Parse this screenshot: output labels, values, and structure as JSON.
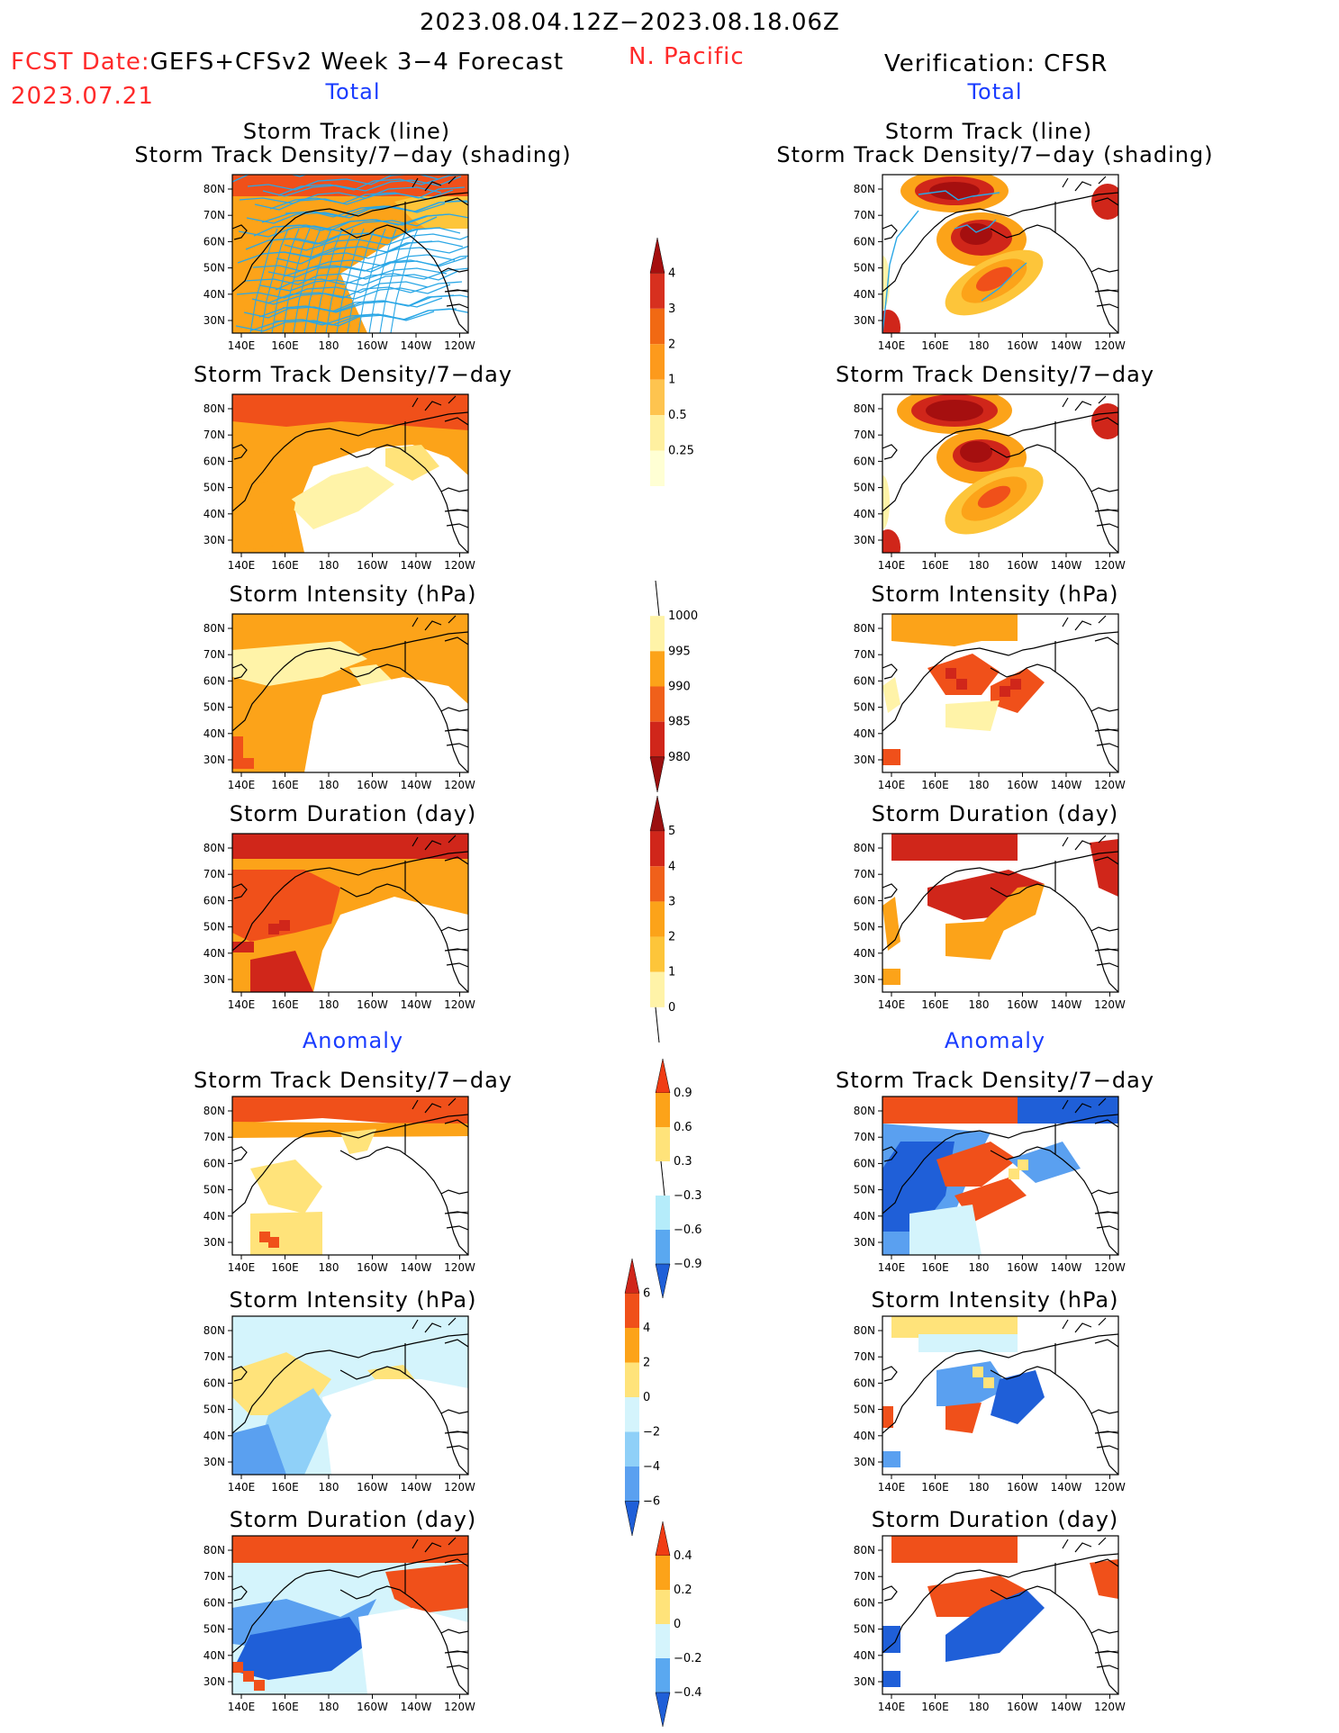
{
  "header": {
    "period": "2023.08.04.12Z−2023.08.18.06Z",
    "fcst_label": "FCST Date:",
    "forecast_name": "GEFS+CFSv2 Week 3−4 Forecast",
    "fcst_date": "2023.07.21",
    "region": "N. Pacific",
    "verification": "Verification: CFSR"
  },
  "sections": {
    "total": "Total",
    "anomaly": "Anomaly"
  },
  "panel_titles": {
    "track_line": "Storm Track (line)",
    "track_density_shading": "Storm Track Density/7−day (shading)",
    "track_density": "Storm Track Density/7−day",
    "intensity": "Storm Intensity (hPa)",
    "duration": "Storm Duration (day)"
  },
  "map_axes": {
    "lon_labels": [
      "140E",
      "160E",
      "180",
      "160W",
      "140W",
      "120W"
    ],
    "lat_labels": [
      "80N",
      "70N",
      "60N",
      "50N",
      "40N",
      "30N"
    ]
  },
  "colorbars": {
    "density": {
      "labels": [
        "4",
        "3",
        "2",
        "1",
        "0.5",
        "0.25"
      ],
      "colors": [
        "#a50f0f",
        "#d7301f",
        "#f16913",
        "#fd9a1c",
        "#fec44f",
        "#fff0a0",
        "#ffffd4"
      ]
    },
    "intensity": {
      "labels": [
        "1000",
        "995",
        "990",
        "985",
        "980"
      ],
      "colors": [
        "#ffffff",
        "#fff3a8",
        "#fca319",
        "#f0601a",
        "#d0261a",
        "#9b1010"
      ]
    },
    "duration": {
      "labels": [
        "5",
        "4",
        "3",
        "2",
        "1",
        "0"
      ],
      "colors": [
        "#9b1010",
        "#d0261a",
        "#f0601a",
        "#fca319",
        "#fdc53a",
        "#fff3a8",
        "#ffffff"
      ]
    },
    "density_anom": {
      "labels": [
        "0.9",
        "0.6",
        "0.3",
        "−0.3",
        "−0.6",
        "−0.9"
      ],
      "colors": [
        "#f03c14",
        "#fca319",
        "#ffe37a",
        "#ffffff",
        "#b5ecfa",
        "#5aa8f0",
        "#1f5fd8"
      ]
    },
    "intensity_anom": {
      "labels": [
        "6",
        "4",
        "2",
        "0",
        "−2",
        "−4",
        "−6"
      ],
      "colors": [
        "#d0261a",
        "#f0501a",
        "#fca319",
        "#ffe37a",
        "#d4f4fc",
        "#8fd0f8",
        "#5aa0f0",
        "#1f5fd8"
      ]
    },
    "duration_anom": {
      "labels": [
        "0.4",
        "0.2",
        "0",
        "−0.2",
        "−0.4"
      ],
      "colors": [
        "#f03c14",
        "#fca319",
        "#ffe37a",
        "#d4f4fc",
        "#5aa8f0",
        "#1f5fd8"
      ]
    }
  }
}
